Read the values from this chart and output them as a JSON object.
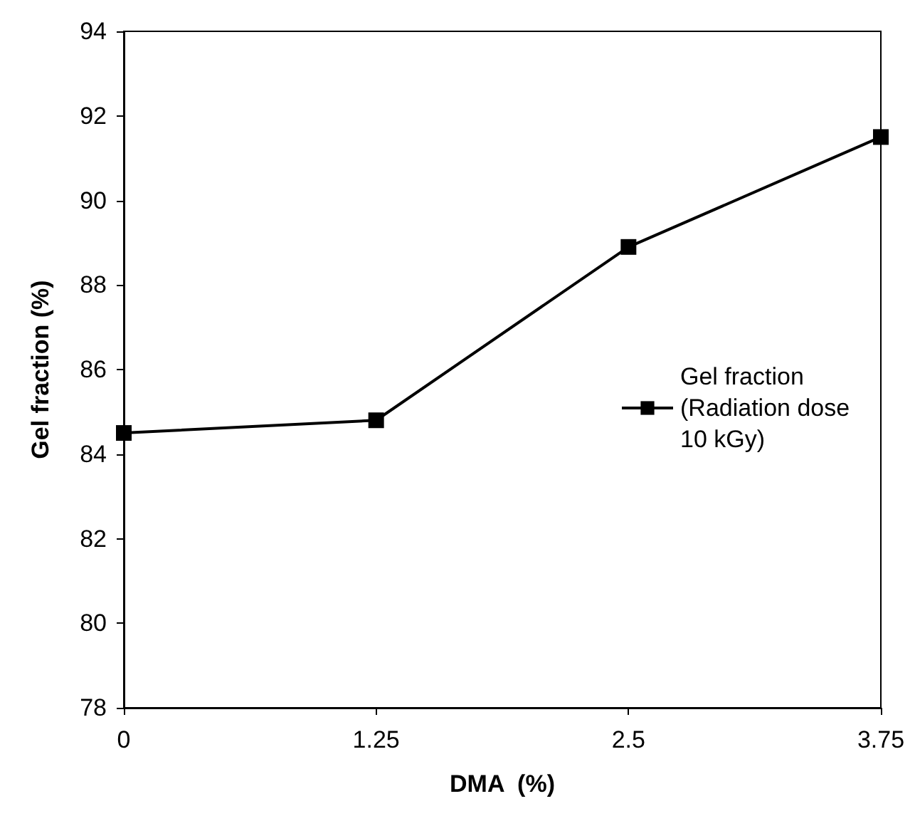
{
  "chart_data": {
    "type": "line",
    "xlabel": "DMA  (%)",
    "ylabel": "Gel fraction (%)",
    "x": [
      0,
      1.25,
      2.5,
      3.75
    ],
    "series": [
      {
        "name": "Gel fraction (Radiation dose 10 kGy)",
        "color": "#000000",
        "values": [
          84.5,
          84.8,
          88.9,
          91.5
        ]
      }
    ],
    "xlim": [
      0,
      3.75
    ],
    "xticks": [
      0,
      1.25,
      2.5,
      3.75
    ],
    "ylim": [
      78,
      94
    ],
    "yticks": [
      78,
      80,
      82,
      84,
      86,
      88,
      90,
      92,
      94
    ],
    "grid": false,
    "legend": "right",
    "marker": "square",
    "line_style": "solid"
  }
}
